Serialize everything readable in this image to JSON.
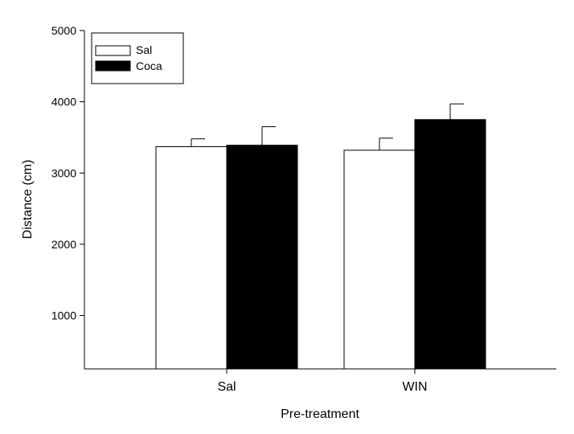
{
  "chart_data": {
    "type": "bar",
    "title": "",
    "xlabel": "Pre-treatment",
    "ylabel": "Distance (cm)",
    "categories": [
      "Sal",
      "WIN"
    ],
    "ylim": [
      250,
      5000
    ],
    "yticks": [
      1000,
      2000,
      3000,
      4000,
      5000
    ],
    "grid": false,
    "legend_position": "top-left",
    "series": [
      {
        "name": "Sal",
        "color": "#ffffff",
        "values": [
          3370,
          3320
        ],
        "errors": [
          110,
          170
        ]
      },
      {
        "name": "Coca",
        "color": "#000000",
        "values": [
          3390,
          3750
        ],
        "errors": [
          260,
          220
        ]
      }
    ]
  }
}
